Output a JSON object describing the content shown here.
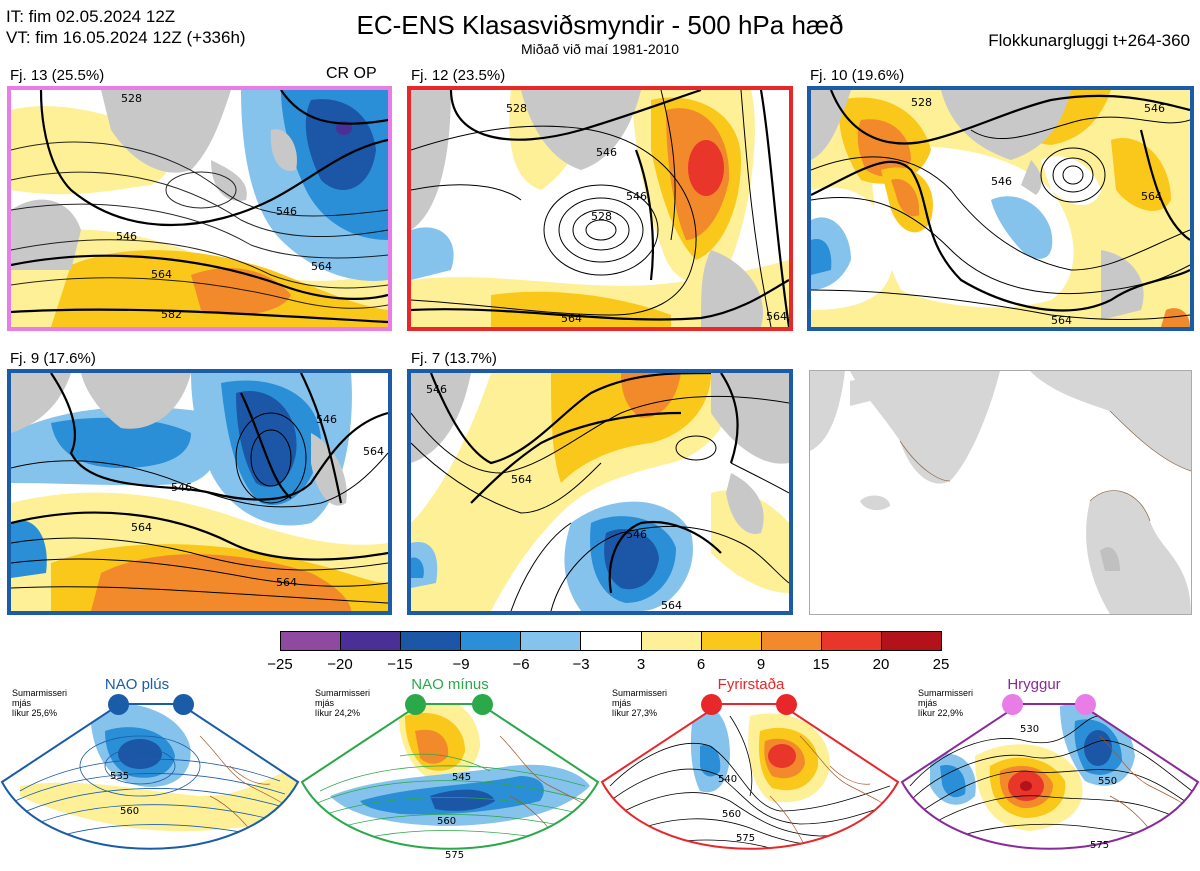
{
  "header": {
    "it_line": "IT: fim 02.05.2024 12Z",
    "vt_line": "VT: fim 16.05.2024 12Z  (+336h)",
    "title": "EC-ENS Klasasviðsmyndir - 500 hPa hæð",
    "subtitle": "Miðað við maí 1981-2010",
    "window": "Flokkunargluggi t+264-360"
  },
  "panels": [
    {
      "label": "Fj. 13 (25.5%)",
      "extra": "CR OP",
      "border": "#e87de8",
      "contours": [
        "528",
        "546",
        "564",
        "582",
        "546",
        "564"
      ]
    },
    {
      "label": "Fj. 12 (23.5%)",
      "border": "#e8272a",
      "contours": [
        "528",
        "546",
        "564",
        "528",
        "546",
        "564"
      ]
    },
    {
      "label": "Fj. 10 (19.6%)",
      "border": "#1a5ca8",
      "contours": [
        "528",
        "546",
        "564",
        "546",
        "564"
      ]
    },
    {
      "label": "Fj. 9 (17.6%)",
      "border": "#1a5ca8",
      "contours": [
        "546",
        "564",
        "564",
        "546",
        "564"
      ]
    },
    {
      "label": "Fj. 7 (13.7%)",
      "border": "#1a5ca8",
      "contours": [
        "546",
        "564",
        "546",
        "564"
      ]
    }
  ],
  "colorbar": {
    "colors": [
      "#8e4a9e",
      "#4a2f96",
      "#1c56a6",
      "#2a8fd6",
      "#86c3ec",
      "#ffffff",
      "#fdf097",
      "#f9c81a",
      "#f28a2c",
      "#e8362a",
      "#b3121a"
    ],
    "labels": [
      "−25",
      "−20",
      "−15",
      "−9",
      "−6",
      "−3",
      "3",
      "6",
      "9",
      "15",
      "20",
      "25"
    ]
  },
  "schemes": [
    {
      "title": "NAO plús",
      "line1": "Sumarmisseri",
      "line2": "mjás",
      "line3": "líkur 25,6%",
      "color": "#1a5ca8",
      "contours": [
        "535",
        "560"
      ]
    },
    {
      "title": "NAO mínus",
      "line1": "Sumarmisseri",
      "line2": "mjás",
      "line3": "líkur 24,2%",
      "color": "#2aa84a",
      "contours": [
        "545",
        "560",
        "575"
      ]
    },
    {
      "title": "Fyrirstaða",
      "line1": "Sumarmisseri",
      "line2": "mjás",
      "line3": "líkur 27,3%",
      "color": "#e8272a",
      "contours": [
        "540",
        "560",
        "575"
      ]
    },
    {
      "title": "Hryggur",
      "line1": "Sumarmisseri",
      "line2": "mjás",
      "line3": "líkur 22,9%",
      "color": "#e87de8",
      "contours": [
        "530",
        "550",
        "575"
      ]
    }
  ]
}
